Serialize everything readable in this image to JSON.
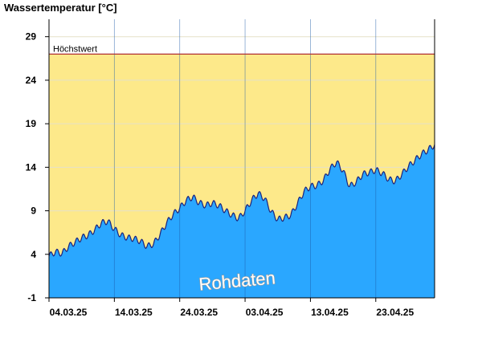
{
  "chart_data": {
    "type": "area",
    "title": "Wassertemperatur [°C]",
    "xlabel": "",
    "ylabel": "",
    "ylim": [
      -1,
      31
    ],
    "yticks": [
      29,
      24,
      19,
      14,
      9,
      4,
      -1
    ],
    "xlim": [
      "2025-03-04",
      "2025-05-02"
    ],
    "xticks": [
      {
        "date": "2025-03-04",
        "label": "04.03.25"
      },
      {
        "date": "2025-03-14",
        "label": "14.03.25"
      },
      {
        "date": "2025-03-24",
        "label": "24.03.25"
      },
      {
        "date": "2025-04-03",
        "label": "03.04.25"
      },
      {
        "date": "2025-04-13",
        "label": "13.04.25"
      },
      {
        "date": "2025-04-23",
        "label": "23.04.25"
      }
    ],
    "band": {
      "label": "Höchstwert",
      "from": -1,
      "to": 27,
      "color": "#fde98a",
      "line_color": "#b03030"
    },
    "annotation": "Rohdaten",
    "grid": true,
    "series": [
      {
        "color": "#2aa7ff",
        "line_color": "#1a237e",
        "points": [
          [
            "2025-03-04",
            3.8
          ],
          [
            "2025-03-05",
            4.3
          ],
          [
            "2025-03-06",
            4.1
          ],
          [
            "2025-03-07",
            4.9
          ],
          [
            "2025-03-08",
            5.4
          ],
          [
            "2025-03-09",
            5.9
          ],
          [
            "2025-03-10",
            6.2
          ],
          [
            "2025-03-11",
            6.8
          ],
          [
            "2025-03-12",
            7.6
          ],
          [
            "2025-03-13",
            7.8
          ],
          [
            "2025-03-14",
            6.9
          ],
          [
            "2025-03-15",
            6.2
          ],
          [
            "2025-03-16",
            5.9
          ],
          [
            "2025-03-17",
            5.8
          ],
          [
            "2025-03-18",
            5.5
          ],
          [
            "2025-03-19",
            4.9
          ],
          [
            "2025-03-20",
            5.2
          ],
          [
            "2025-03-21",
            6.3
          ],
          [
            "2025-03-22",
            7.6
          ],
          [
            "2025-03-23",
            8.6
          ],
          [
            "2025-03-24",
            9.3
          ],
          [
            "2025-03-25",
            10.2
          ],
          [
            "2025-03-26",
            10.6
          ],
          [
            "2025-03-27",
            9.9
          ],
          [
            "2025-03-28",
            9.6
          ],
          [
            "2025-03-29",
            9.9
          ],
          [
            "2025-03-30",
            9.6
          ],
          [
            "2025-03-31",
            9.0
          ],
          [
            "2025-04-01",
            8.5
          ],
          [
            "2025-04-02",
            8.1
          ],
          [
            "2025-04-03",
            9.0
          ],
          [
            "2025-04-04",
            10.2
          ],
          [
            "2025-04-05",
            11.0
          ],
          [
            "2025-04-06",
            10.4
          ],
          [
            "2025-04-07",
            8.9
          ],
          [
            "2025-04-08",
            8.0
          ],
          [
            "2025-04-09",
            8.2
          ],
          [
            "2025-04-10",
            8.5
          ],
          [
            "2025-04-11",
            9.8
          ],
          [
            "2025-04-12",
            11.2
          ],
          [
            "2025-04-13",
            11.8
          ],
          [
            "2025-04-14",
            11.9
          ],
          [
            "2025-04-15",
            12.5
          ],
          [
            "2025-04-16",
            13.8
          ],
          [
            "2025-04-17",
            14.6
          ],
          [
            "2025-04-18",
            13.6
          ],
          [
            "2025-04-19",
            11.8
          ],
          [
            "2025-04-20",
            12.3
          ],
          [
            "2025-04-21",
            13.2
          ],
          [
            "2025-04-22",
            13.4
          ],
          [
            "2025-04-23",
            13.7
          ],
          [
            "2025-04-24",
            13.3
          ],
          [
            "2025-04-25",
            12.6
          ],
          [
            "2025-04-26",
            12.4
          ],
          [
            "2025-04-27",
            13.2
          ],
          [
            "2025-04-28",
            14.1
          ],
          [
            "2025-04-29",
            14.8
          ],
          [
            "2025-04-30",
            15.5
          ],
          [
            "2025-05-01",
            16.0
          ],
          [
            "2025-05-02",
            16.6
          ]
        ]
      }
    ]
  }
}
